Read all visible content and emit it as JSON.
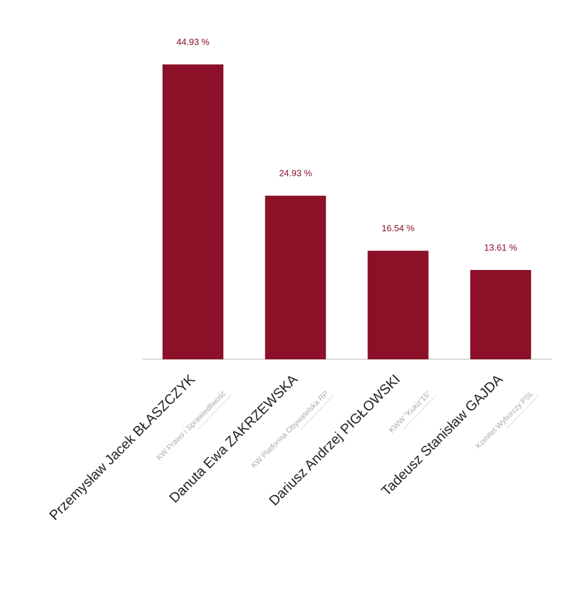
{
  "chart_data": {
    "type": "bar",
    "categories": [
      "Przemysław Jacek BŁASZCZYK",
      "Danuta Ewa ZAKRZEWSKA",
      "Dariusz Andrzej PIGŁOWSKI",
      "Tadeusz Stanisław GAJDA"
    ],
    "committees": [
      "KW Prawo i Sprawiedliwość",
      "KW Platforma Obywatelska RP",
      "KWW \"Kukiz'15\"",
      "Komitet Wyborczy PSL"
    ],
    "values": [
      44.93,
      24.93,
      16.54,
      13.61
    ],
    "value_labels": [
      "44.93 %",
      "24.93 %",
      "16.54 %",
      "13.61 %"
    ],
    "color": "#8b1028"
  }
}
